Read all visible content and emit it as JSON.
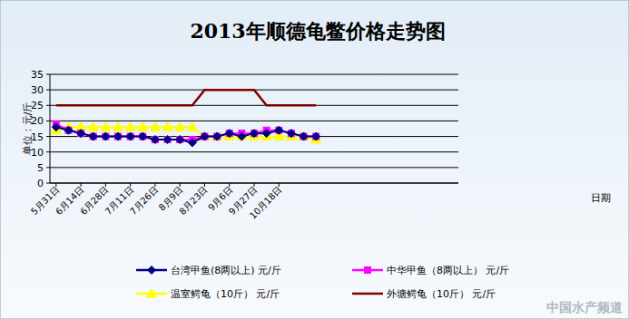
{
  "chart_data": {
    "type": "line",
    "title": "2013年顺德龟鳖价格走势图",
    "y_label": "单位：元/斤",
    "x_label": "日期",
    "watermark": "中国水产频道",
    "categories": [
      "5月31日",
      null,
      "6月14日",
      null,
      "6月28日",
      null,
      "7月11日",
      null,
      "7月26日",
      null,
      "8月9日",
      null,
      "8月23日",
      null,
      "9月6日",
      null,
      "9月27日",
      null,
      "10月18日",
      null,
      null,
      null,
      null,
      null,
      null,
      null,
      null,
      null,
      null,
      null,
      null,
      null,
      null
    ],
    "ylim": [
      0,
      35
    ],
    "yticks": [
      0,
      5,
      10,
      15,
      20,
      25,
      30,
      35
    ],
    "grid": true,
    "legend": "bottom",
    "series": [
      {
        "name": "台湾甲鱼(8两以上) 元/斤",
        "color": "#000080",
        "marker": "diamond",
        "values": [
          18,
          17,
          16,
          15,
          15,
          15,
          15,
          15,
          14,
          14,
          14,
          13,
          15,
          15,
          16,
          15,
          16,
          16,
          17,
          16,
          15,
          15,
          null,
          null,
          null,
          null,
          null,
          null,
          null,
          null,
          null,
          null,
          null
        ]
      },
      {
        "name": "中华甲鱼（8两以上） 元/斤",
        "color": "#ff00ff",
        "marker": "square",
        "values": [
          19,
          17,
          16,
          15,
          15,
          15,
          15,
          15,
          14,
          14,
          14,
          14,
          15,
          15,
          16,
          16,
          16,
          17,
          17,
          16,
          15,
          15,
          null,
          null,
          null,
          null,
          null,
          null,
          null,
          null,
          null,
          null,
          null
        ]
      },
      {
        "name": "温室鳄龟（10斤） 元/斤",
        "color": "#ffff00",
        "marker": "triangle",
        "values": [
          17,
          18,
          18,
          18,
          18,
          18,
          18,
          18,
          18,
          18,
          18,
          18,
          15,
          15,
          15,
          15,
          15,
          15,
          15,
          15,
          15,
          14,
          null,
          null,
          null,
          null,
          null,
          null,
          null,
          null,
          null,
          null,
          null
        ]
      },
      {
        "name": "外塘鳄龟（10斤） 元/斤",
        "color": "#800000",
        "marker": "none",
        "values": [
          25,
          25,
          25,
          25,
          25,
          25,
          25,
          25,
          25,
          25,
          25,
          25,
          30,
          30,
          30,
          30,
          30,
          25,
          25,
          25,
          25,
          25,
          null,
          null,
          null,
          null,
          null,
          null,
          null,
          null,
          null,
          null,
          null
        ]
      }
    ]
  }
}
